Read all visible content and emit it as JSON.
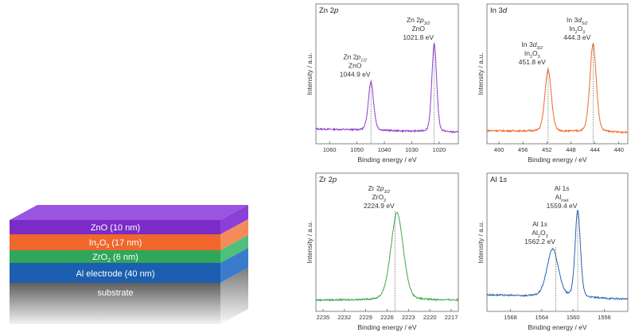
{
  "stack": {
    "layers": [
      {
        "label": "ZnO (10 nm)",
        "color": "#7B2BC8"
      },
      {
        "label": "In2O3 (17 nm)",
        "color": "#F0672C"
      },
      {
        "label": "ZrO2 (6 nm)",
        "color": "#2FA65A"
      },
      {
        "label": "Al electrode (40 nm)",
        "color": "#1C5FB0"
      },
      {
        "label": "substrate",
        "color": "#8A8A8A"
      }
    ]
  },
  "chart_data": [
    {
      "type": "line",
      "panel_label": "Zn 2p",
      "color": "#8E3CCF",
      "xlabel": "Binding energy / eV",
      "ylabel": "Intensity / a.u.",
      "xlim": [
        1065,
        1013
      ],
      "ticks": [
        "1060",
        "1050",
        "1040",
        "1030",
        "1020"
      ],
      "tick_values": [
        1060,
        1050,
        1040,
        1030,
        1020
      ],
      "peaks": [
        {
          "center": 1044.9,
          "height": 0.55,
          "width": 1.0,
          "label_lines": [
            "Zn 2p1/2",
            "ZnO",
            "1044.9 eV"
          ]
        },
        {
          "center": 1021.8,
          "height": 1.0,
          "width": 0.9,
          "label_lines": [
            "Zn 2p3/2",
            "ZnO",
            "1021.8 eV"
          ]
        }
      ],
      "background": {
        "start": 0.06,
        "end": 0.02
      }
    },
    {
      "type": "line",
      "panel_label": "In 3d",
      "color": "#F0672C",
      "xlabel": "Binding energy / eV",
      "ylabel": "Intensity / a.u.",
      "xlim": [
        462,
        438.5
      ],
      "ticks": [
        "460",
        "456",
        "452",
        "448",
        "444",
        "440"
      ],
      "tick_values": [
        460,
        456,
        452,
        448,
        444,
        440
      ],
      "peaks": [
        {
          "center": 451.8,
          "height": 0.7,
          "width": 0.55,
          "label_lines": [
            "In 3d3/2",
            "In2O3",
            "451.8 eV"
          ]
        },
        {
          "center": 444.3,
          "height": 1.0,
          "width": 0.55,
          "label_lines": [
            "In 3d5/2",
            "In2O3",
            "444.3 eV"
          ]
        }
      ],
      "background": {
        "start": 0.04,
        "end": 0.02
      }
    },
    {
      "type": "line",
      "panel_label": "Zr 2p",
      "color": "#3DAA4D",
      "xlabel": "Binding energy / eV",
      "ylabel": "Intensity / a.u.",
      "xlim": [
        2236,
        2216
      ],
      "ticks": [
        "2235",
        "2232",
        "2229",
        "2226",
        "2223",
        "2220",
        "2217"
      ],
      "tick_values": [
        2235,
        2232,
        2229,
        2226,
        2223,
        2220,
        2217
      ],
      "peaks": [
        {
          "center": 2224.6,
          "height": 1.0,
          "width": 0.9,
          "label_lines": [
            "Zr 2p3/2",
            "ZrO2",
            "2224.9 eV"
          ],
          "marker": 2224.9
        }
      ],
      "background": {
        "start": 0.02,
        "end": 0.02
      }
    },
    {
      "type": "line",
      "panel_label": "Al 1s",
      "color": "#2A62B0",
      "xlabel": "Binding energy / eV",
      "ylabel": "Intensity / a.u.",
      "xlim": [
        1571,
        1553
      ],
      "ticks": [
        "1568",
        "1564",
        "1560",
        "1556"
      ],
      "tick_values": [
        1568,
        1564,
        1560,
        1556
      ],
      "peaks": [
        {
          "center": 1562.6,
          "height": 0.55,
          "width": 0.75,
          "label_lines": [
            "Al 1s",
            "Al2O3",
            "1562.2 eV"
          ],
          "marker": 1562.2
        },
        {
          "center": 1559.4,
          "height": 1.0,
          "width": 0.35,
          "label_lines": [
            "Al 1s",
            "Almet",
            "1559.4 eV"
          ]
        }
      ],
      "background": {
        "start": 0.08,
        "end": 0.03
      }
    }
  ]
}
